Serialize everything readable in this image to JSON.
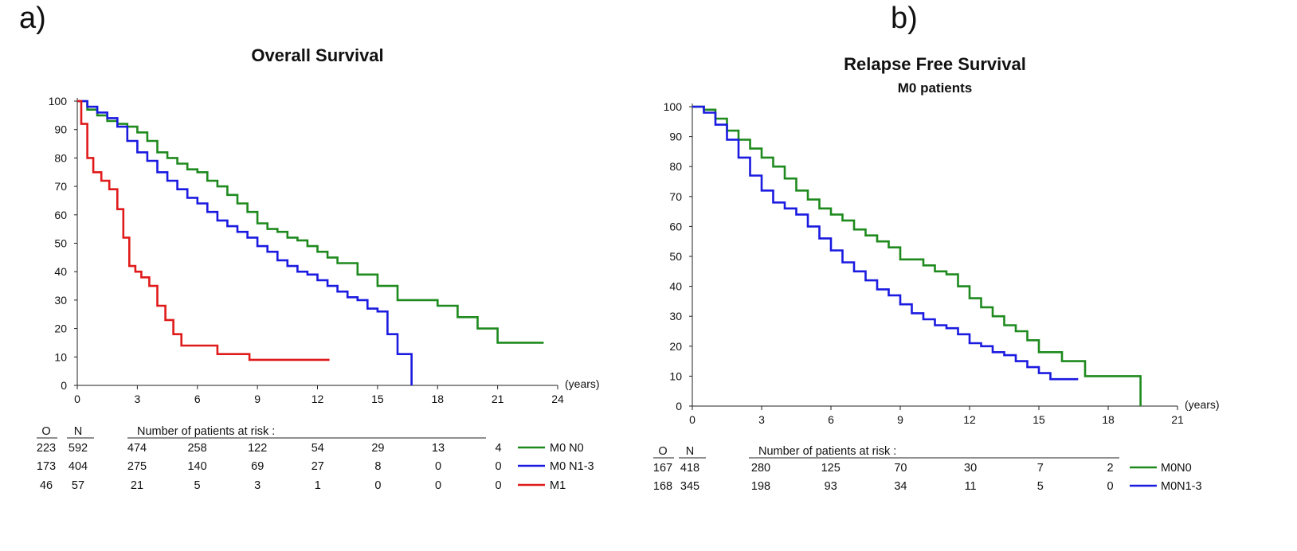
{
  "panel_labels": [
    "a)",
    "b)"
  ],
  "chart_data": [
    {
      "type": "line",
      "step": true,
      "title": "Overall Survival",
      "subtitle": "",
      "xlabel": "(years)",
      "ylabel": "",
      "xlim": [
        0,
        24
      ],
      "ylim": [
        0,
        100
      ],
      "xticks": [
        0,
        3,
        6,
        9,
        12,
        15,
        18,
        21,
        24
      ],
      "yticks": [
        0,
        10,
        20,
        30,
        40,
        50,
        60,
        70,
        80,
        90,
        100
      ],
      "risk_table": {
        "header_o": "O",
        "header_n": "N",
        "header_label": "Number of patients at risk :",
        "rows": [
          {
            "o": "223",
            "n": "592",
            "counts": [
              "474",
              "258",
              "122",
              "54",
              "29",
              "13",
              "4"
            ],
            "legend": "M0 N0"
          },
          {
            "o": "173",
            "n": "404",
            "counts": [
              "275",
              "140",
              "69",
              "27",
              "8",
              "0",
              "0"
            ],
            "legend": "M0 N1-3"
          },
          {
            "o": "46",
            "n": "57",
            "counts": [
              "21",
              "5",
              "3",
              "1",
              "0",
              "0",
              "0"
            ],
            "legend": "M1"
          }
        ]
      },
      "series": [
        {
          "name": "M0 N0",
          "color": "#1e8a1e",
          "x": [
            0,
            0.5,
            1,
            1.5,
            2,
            2.5,
            3,
            3.5,
            4,
            4.5,
            5,
            5.5,
            6,
            6.5,
            7,
            7.5,
            8,
            8.5,
            9,
            9.5,
            10,
            10.5,
            11,
            11.5,
            12,
            12.5,
            13,
            13.5,
            14,
            14.5,
            15,
            16,
            17,
            18,
            19,
            20,
            21,
            22,
            23.3
          ],
          "y": [
            100,
            97,
            95,
            93,
            92,
            91,
            89,
            86,
            82,
            80,
            78,
            76,
            75,
            72,
            70,
            67,
            64,
            61,
            57,
            55,
            54,
            52,
            51,
            49,
            47,
            45,
            43,
            43,
            39,
            39,
            35,
            30,
            30,
            28,
            24,
            20,
            15,
            15,
            15
          ]
        },
        {
          "name": "M0 N1-3",
          "color": "#1a1ae0",
          "x": [
            0,
            0.5,
            1,
            1.5,
            2,
            2.5,
            3,
            3.5,
            4,
            4.5,
            5,
            5.5,
            6,
            6.5,
            7,
            7.5,
            8,
            8.5,
            9,
            9.5,
            10,
            10.5,
            11,
            11.5,
            12,
            12.5,
            13,
            13.5,
            14,
            14.5,
            15,
            15.5,
            16,
            16.5,
            16.7,
            16.7
          ],
          "y": [
            100,
            98,
            96,
            94,
            91,
            86,
            82,
            79,
            75,
            72,
            69,
            66,
            64,
            61,
            58,
            56,
            54,
            52,
            49,
            47,
            44,
            42,
            40,
            39,
            37,
            35,
            33,
            31,
            30,
            27,
            26,
            18,
            11,
            11,
            11,
            0
          ]
        },
        {
          "name": "M1",
          "color": "#e01a1a",
          "x": [
            0,
            0.2,
            0.5,
            0.8,
            1.2,
            1.6,
            2.0,
            2.3,
            2.6,
            2.9,
            3.2,
            3.6,
            4.0,
            4.4,
            4.8,
            5.2,
            6.0,
            7.0,
            8.0,
            8.6,
            10.0,
            12.6
          ],
          "y": [
            100,
            92,
            80,
            75,
            72,
            69,
            62,
            52,
            42,
            40,
            38,
            35,
            28,
            23,
            18,
            14,
            14,
            11,
            11,
            9,
            9,
            9
          ]
        }
      ]
    },
    {
      "type": "line",
      "step": true,
      "title": "Relapse Free Survival",
      "subtitle": "M0 patients",
      "xlabel": "(years)",
      "ylabel": "",
      "xlim": [
        0,
        21
      ],
      "ylim": [
        0,
        100
      ],
      "xticks": [
        0,
        3,
        6,
        9,
        12,
        15,
        18,
        21
      ],
      "yticks": [
        0,
        10,
        20,
        30,
        40,
        50,
        60,
        70,
        80,
        90,
        100
      ],
      "risk_table": {
        "header_o": "O",
        "header_n": "N",
        "header_label": "Number of patients at risk :",
        "rows": [
          {
            "o": "167",
            "n": "418",
            "counts": [
              "280",
              "125",
              "70",
              "30",
              "7",
              "2"
            ],
            "legend": "M0N0"
          },
          {
            "o": "168",
            "n": "345",
            "counts": [
              "198",
              "93",
              "34",
              "11",
              "5",
              "0"
            ],
            "legend": "M0N1-3"
          }
        ]
      },
      "series": [
        {
          "name": "M0N0",
          "color": "#1e8a1e",
          "x": [
            0,
            0.5,
            1,
            1.5,
            2,
            2.5,
            3,
            3.5,
            4,
            4.5,
            5,
            5.5,
            6,
            6.5,
            7,
            7.5,
            8,
            8.5,
            9,
            9.5,
            10,
            10.5,
            11,
            11.5,
            12,
            12.5,
            13,
            13.5,
            14,
            14.5,
            15,
            16,
            17,
            18,
            19,
            19.4,
            19.4
          ],
          "y": [
            100,
            99,
            96,
            92,
            89,
            86,
            83,
            80,
            76,
            72,
            69,
            66,
            64,
            62,
            59,
            57,
            55,
            53,
            49,
            49,
            47,
            45,
            44,
            40,
            36,
            33,
            30,
            27,
            25,
            22,
            18,
            15,
            10,
            10,
            10,
            10,
            0
          ]
        },
        {
          "name": "M0N1-3",
          "color": "#1a1ae0",
          "x": [
            0,
            0.5,
            1,
            1.5,
            2,
            2.5,
            3,
            3.5,
            4,
            4.5,
            5,
            5.5,
            6,
            6.5,
            7,
            7.5,
            8,
            8.5,
            9,
            9.5,
            10,
            10.5,
            11,
            11.5,
            12,
            12.5,
            13,
            13.5,
            14,
            14.5,
            15,
            15.5,
            16,
            16.7
          ],
          "y": [
            100,
            98,
            94,
            89,
            83,
            77,
            72,
            68,
            66,
            64,
            60,
            56,
            52,
            48,
            45,
            42,
            39,
            37,
            34,
            31,
            29,
            27,
            26,
            24,
            21,
            20,
            18,
            17,
            15,
            13,
            11,
            9,
            9,
            9
          ]
        }
      ]
    }
  ]
}
